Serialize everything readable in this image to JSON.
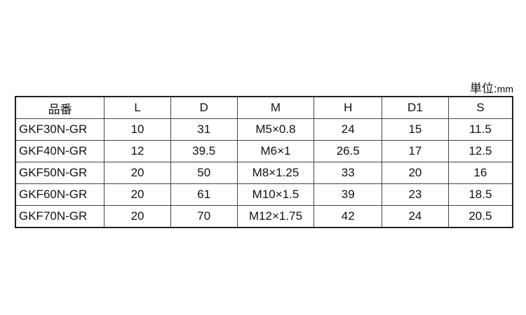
{
  "unit": {
    "label": "単位:",
    "value": "mm"
  },
  "table": {
    "headers": [
      "品番",
      "L",
      "D",
      "M",
      "H",
      "D1",
      "S"
    ],
    "rows": [
      [
        "GKF30N-GR",
        "10",
        "31",
        "M5×0.8",
        "24",
        "15",
        "11.5"
      ],
      [
        "GKF40N-GR",
        "12",
        "39.5",
        "M6×1",
        "26.5",
        "17",
        "12.5"
      ],
      [
        "GKF50N-GR",
        "20",
        "50",
        "M8×1.25",
        "33",
        "20",
        "16"
      ],
      [
        "GKF60N-GR",
        "20",
        "61",
        "M10×1.5",
        "39",
        "23",
        "18.5"
      ],
      [
        "GKF70N-GR",
        "20",
        "70",
        "M12×1.75",
        "42",
        "24",
        "20.5"
      ]
    ]
  }
}
